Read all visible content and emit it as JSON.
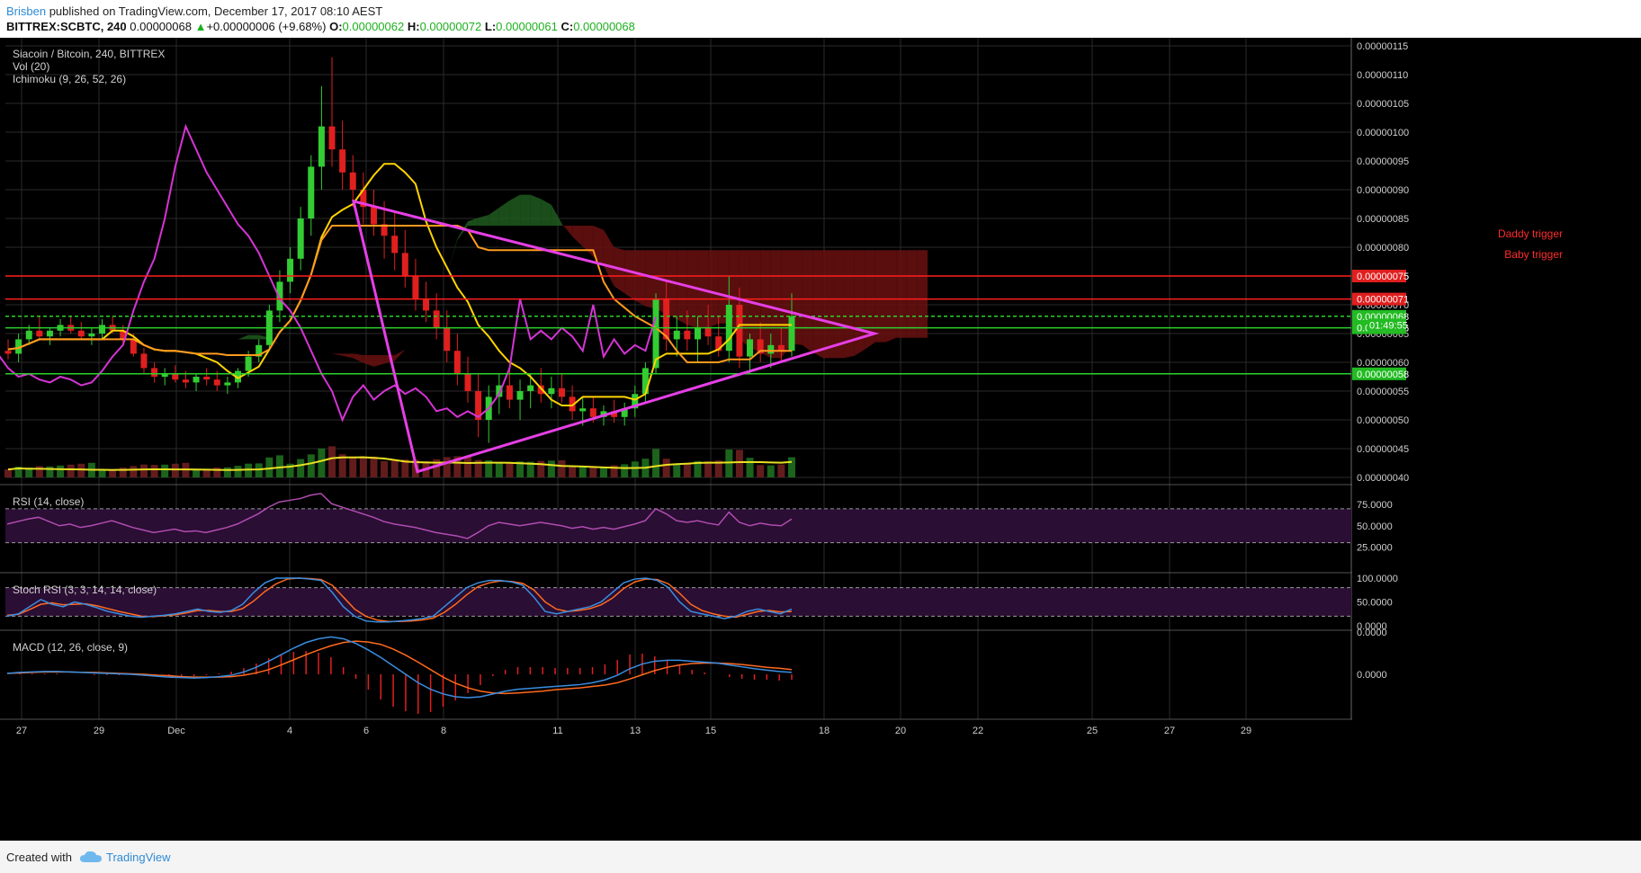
{
  "header": {
    "author": "Brisben",
    "published_text": "published on TradingView.com, December 17, 2017 08:10 AEST",
    "symbol": "BITTREX:SCBTC, 240",
    "last": "0.00000068",
    "change_arrow": "▲",
    "change": "+0.00000006 (+9.68%)",
    "o_label": "O:",
    "o_value": "0.00000062",
    "h_label": "H:",
    "h_value": "0.00000072",
    "l_label": "L:",
    "l_value": "0.00000061",
    "c_label": "C:",
    "c_value": "0.00000068"
  },
  "footer": {
    "created_with": "Created with",
    "brand": "TradingView",
    "logo_icon": "cloud-logo-icon"
  },
  "colors": {
    "background": "#000000",
    "grid": "#2a2a2a",
    "up": "#33cc33",
    "down": "#e01f1f",
    "triangle": "#e63fe6",
    "tenkan": "#ffd400",
    "kijun": "#ff9a1f",
    "chikou": "#d534d5",
    "cloud_bull": "#1f5a1f",
    "cloud_bear": "#6a1010",
    "rsi": "#b04cb0",
    "stoch_k": "#3a8de0",
    "stoch_d": "#ff6a1f",
    "macd": "#3a8de0",
    "signal": "#ff6a1f",
    "hist": "#e01f1f"
  },
  "chart_data": {
    "type": "candlestick",
    "title": "Siacoin / Bitcoin, 240, BITTREX",
    "indicators": [
      "Vol (20)",
      "Ichimoku (9, 26, 52, 26)"
    ],
    "x_ticks": [
      "27",
      "29",
      "Dec",
      "4",
      "6",
      "8",
      "11",
      "13",
      "15",
      "18",
      "20",
      "22",
      "25",
      "27",
      "29"
    ],
    "price_ticks": [
      "0.00000115",
      "0.00000110",
      "0.00000105",
      "0.00000100",
      "0.00000095",
      "0.00000090",
      "0.00000085",
      "0.00000080",
      "0.00000075",
      "0.00000070",
      "0.00000065",
      "0.00000060",
      "0.00000055",
      "0.00000050",
      "0.00000045",
      "0.00000040"
    ],
    "price_tick_values": [
      1.15,
      1.1,
      1.05,
      1.0,
      0.95,
      0.9,
      0.85,
      0.8,
      0.75,
      0.7,
      0.65,
      0.6,
      0.55,
      0.5,
      0.45,
      0.4
    ],
    "price_unit_scale": "x1e-6",
    "ohlc": [
      [
        0.62,
        0.64,
        0.605,
        0.615
      ],
      [
        0.615,
        0.65,
        0.6,
        0.64
      ],
      [
        0.64,
        0.665,
        0.63,
        0.655
      ],
      [
        0.655,
        0.68,
        0.64,
        0.645
      ],
      [
        0.645,
        0.66,
        0.63,
        0.655
      ],
      [
        0.655,
        0.675,
        0.645,
        0.665
      ],
      [
        0.665,
        0.68,
        0.65,
        0.655
      ],
      [
        0.655,
        0.67,
        0.64,
        0.645
      ],
      [
        0.645,
        0.66,
        0.63,
        0.65
      ],
      [
        0.65,
        0.675,
        0.64,
        0.665
      ],
      [
        0.665,
        0.68,
        0.65,
        0.655
      ],
      [
        0.655,
        0.665,
        0.63,
        0.64
      ],
      [
        0.64,
        0.65,
        0.61,
        0.615
      ],
      [
        0.615,
        0.625,
        0.58,
        0.59
      ],
      [
        0.59,
        0.6,
        0.565,
        0.575
      ],
      [
        0.575,
        0.59,
        0.56,
        0.58
      ],
      [
        0.58,
        0.595,
        0.565,
        0.57
      ],
      [
        0.57,
        0.585,
        0.555,
        0.565
      ],
      [
        0.565,
        0.58,
        0.55,
        0.575
      ],
      [
        0.575,
        0.59,
        0.56,
        0.57
      ],
      [
        0.57,
        0.585,
        0.55,
        0.56
      ],
      [
        0.56,
        0.575,
        0.545,
        0.565
      ],
      [
        0.565,
        0.59,
        0.555,
        0.585
      ],
      [
        0.585,
        0.62,
        0.575,
        0.61
      ],
      [
        0.61,
        0.64,
        0.6,
        0.63
      ],
      [
        0.63,
        0.7,
        0.62,
        0.69
      ],
      [
        0.69,
        0.76,
        0.67,
        0.74
      ],
      [
        0.74,
        0.8,
        0.72,
        0.78
      ],
      [
        0.78,
        0.87,
        0.76,
        0.85
      ],
      [
        0.85,
        0.96,
        0.82,
        0.94
      ],
      [
        0.94,
        1.08,
        0.9,
        1.01
      ],
      [
        1.01,
        1.13,
        0.94,
        0.97
      ],
      [
        0.97,
        1.02,
        0.9,
        0.93
      ],
      [
        0.93,
        0.96,
        0.87,
        0.9
      ],
      [
        0.9,
        0.93,
        0.84,
        0.87
      ],
      [
        0.87,
        0.9,
        0.82,
        0.84
      ],
      [
        0.84,
        0.88,
        0.78,
        0.82
      ],
      [
        0.82,
        0.86,
        0.76,
        0.79
      ],
      [
        0.79,
        0.83,
        0.73,
        0.75
      ],
      [
        0.75,
        0.78,
        0.69,
        0.71
      ],
      [
        0.71,
        0.74,
        0.67,
        0.69
      ],
      [
        0.69,
        0.72,
        0.64,
        0.66
      ],
      [
        0.66,
        0.69,
        0.6,
        0.62
      ],
      [
        0.62,
        0.65,
        0.56,
        0.58
      ],
      [
        0.58,
        0.61,
        0.53,
        0.55
      ],
      [
        0.55,
        0.58,
        0.47,
        0.5
      ],
      [
        0.5,
        0.56,
        0.46,
        0.54
      ],
      [
        0.54,
        0.58,
        0.51,
        0.56
      ],
      [
        0.56,
        0.59,
        0.52,
        0.535
      ],
      [
        0.535,
        0.57,
        0.5,
        0.55
      ],
      [
        0.55,
        0.58,
        0.52,
        0.56
      ],
      [
        0.56,
        0.59,
        0.53,
        0.545
      ],
      [
        0.545,
        0.575,
        0.52,
        0.555
      ],
      [
        0.555,
        0.58,
        0.53,
        0.54
      ],
      [
        0.54,
        0.56,
        0.5,
        0.515
      ],
      [
        0.515,
        0.54,
        0.49,
        0.52
      ],
      [
        0.52,
        0.54,
        0.495,
        0.505
      ],
      [
        0.505,
        0.525,
        0.49,
        0.515
      ],
      [
        0.515,
        0.535,
        0.495,
        0.505
      ],
      [
        0.505,
        0.53,
        0.49,
        0.52
      ],
      [
        0.52,
        0.56,
        0.505,
        0.545
      ],
      [
        0.545,
        0.6,
        0.53,
        0.59
      ],
      [
        0.59,
        0.72,
        0.58,
        0.71
      ],
      [
        0.71,
        0.74,
        0.62,
        0.64
      ],
      [
        0.64,
        0.68,
        0.61,
        0.655
      ],
      [
        0.655,
        0.69,
        0.62,
        0.64
      ],
      [
        0.64,
        0.68,
        0.6,
        0.66
      ],
      [
        0.66,
        0.7,
        0.63,
        0.645
      ],
      [
        0.645,
        0.68,
        0.61,
        0.62
      ],
      [
        0.62,
        0.75,
        0.6,
        0.7
      ],
      [
        0.7,
        0.73,
        0.59,
        0.61
      ],
      [
        0.61,
        0.65,
        0.58,
        0.64
      ],
      [
        0.64,
        0.67,
        0.6,
        0.615
      ],
      [
        0.615,
        0.65,
        0.59,
        0.63
      ],
      [
        0.63,
        0.66,
        0.6,
        0.62
      ],
      [
        0.62,
        0.72,
        0.61,
        0.68
      ]
    ],
    "volume_desc": "volume histogram with Vol (20) moving average",
    "horizontal_levels": [
      {
        "value": 0.75,
        "label": "Daddy trigger",
        "tag": "0.00000075"
      },
      {
        "value": 0.71,
        "label": "Baby trigger",
        "tag": "0.00000071"
      },
      {
        "value": 0.68,
        "tag": "0.00000068"
      },
      {
        "value": 0.66,
        "tag": "0.00000066"
      },
      {
        "value": 0.58,
        "tag": "0.00000058"
      }
    ],
    "countdown_tag": "01:49:55",
    "rsi": {
      "title": "RSI (14, close)",
      "ticks": [
        "75.0000",
        "50.0000",
        "25.0000"
      ],
      "tick_values": [
        75,
        50,
        25
      ],
      "band": [
        30,
        70
      ],
      "values": [
        52,
        55,
        58,
        60,
        55,
        50,
        52,
        48,
        50,
        53,
        56,
        52,
        48,
        45,
        42,
        44,
        46,
        43,
        44,
        42,
        45,
        48,
        52,
        58,
        64,
        72,
        78,
        80,
        82,
        86,
        88,
        76,
        72,
        68,
        64,
        60,
        55,
        52,
        50,
        48,
        45,
        42,
        40,
        38,
        35,
        42,
        50,
        54,
        52,
        50,
        52,
        54,
        52,
        50,
        47,
        49,
        46,
        48,
        46,
        49,
        52,
        56,
        70,
        64,
        56,
        54,
        56,
        53,
        51,
        66,
        54,
        50,
        53,
        51,
        50,
        58
      ]
    },
    "stoch_rsi": {
      "title": "Stoch RSI (3, 3, 14, 14, close)",
      "ticks": [
        "100.0000",
        "50.0000",
        "0.0000"
      ],
      "tick_values": [
        100,
        50,
        0
      ],
      "band": [
        20,
        80
      ],
      "k": [
        20,
        25,
        40,
        55,
        45,
        40,
        50,
        45,
        38,
        30,
        25,
        20,
        18,
        20,
        22,
        25,
        30,
        35,
        30,
        28,
        32,
        45,
        70,
        90,
        100,
        100,
        100,
        98,
        95,
        70,
        40,
        20,
        10,
        8,
        8,
        10,
        12,
        15,
        20,
        40,
        60,
        80,
        90,
        95,
        95,
        92,
        85,
        60,
        30,
        25,
        30,
        35,
        40,
        50,
        70,
        90,
        98,
        100,
        95,
        80,
        50,
        30,
        25,
        20,
        15,
        20,
        30,
        35,
        30,
        25,
        35
      ],
      "d": [
        22,
        24,
        34,
        45,
        48,
        44,
        45,
        46,
        42,
        36,
        30,
        25,
        20,
        19,
        21,
        23,
        27,
        32,
        32,
        30,
        30,
        36,
        52,
        72,
        88,
        98,
        100,
        99,
        97,
        85,
        60,
        35,
        20,
        12,
        9,
        9,
        10,
        12,
        16,
        28,
        45,
        65,
        82,
        90,
        94,
        93,
        89,
        75,
        50,
        35,
        30,
        32,
        36,
        44,
        58,
        78,
        92,
        98,
        97,
        88,
        68,
        45,
        32,
        25,
        20,
        18,
        24,
        30,
        32,
        29,
        30
      ]
    },
    "macd": {
      "title": "MACD (12, 26, close, 9)",
      "ticks": [
        "0.0000",
        "0.0000"
      ],
      "macd": [
        0.2,
        0.4,
        0.5,
        0.6,
        0.6,
        0.5,
        0.4,
        0.3,
        0.2,
        0.1,
        0.0,
        -0.2,
        -0.4,
        -0.6,
        -0.7,
        -0.8,
        -0.7,
        -0.5,
        -0.2,
        0.5,
        1.5,
        2.8,
        4.2,
        5.6,
        6.8,
        7.6,
        8.0,
        7.6,
        6.6,
        5.2,
        3.6,
        1.8,
        0.0,
        -1.8,
        -3.2,
        -4.2,
        -4.8,
        -5.0,
        -4.8,
        -4.2,
        -3.6,
        -3.2,
        -3.0,
        -2.8,
        -2.6,
        -2.4,
        -2.2,
        -1.8,
        -1.2,
        -0.2,
        1.2,
        2.2,
        2.8,
        3.0,
        3.0,
        2.8,
        2.6,
        2.4,
        2.0,
        1.6,
        1.2,
        0.9,
        0.6,
        0.4
      ],
      "signal": [
        0.2,
        0.3,
        0.4,
        0.5,
        0.5,
        0.5,
        0.4,
        0.4,
        0.3,
        0.2,
        0.1,
        0.0,
        -0.2,
        -0.3,
        -0.5,
        -0.6,
        -0.6,
        -0.6,
        -0.5,
        -0.2,
        0.3,
        1.0,
        2.0,
        3.1,
        4.2,
        5.2,
        6.1,
        6.8,
        7.1,
        6.9,
        6.4,
        5.4,
        4.1,
        2.6,
        1.0,
        -0.6,
        -1.9,
        -2.9,
        -3.6,
        -4.0,
        -4.1,
        -4.0,
        -3.8,
        -3.6,
        -3.3,
        -3.1,
        -2.9,
        -2.6,
        -2.3,
        -1.8,
        -1.0,
        -0.1,
        0.8,
        1.5,
        2.0,
        2.3,
        2.4,
        2.4,
        2.3,
        2.1,
        1.8,
        1.5,
        1.3,
        1.0
      ]
    }
  }
}
